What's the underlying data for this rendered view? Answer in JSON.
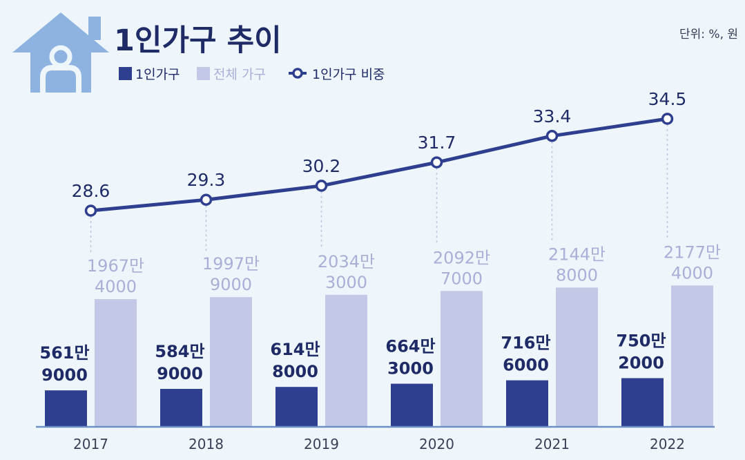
{
  "header": {
    "title": "1인가구 추이",
    "unit": "단위: %, 원"
  },
  "legend": [
    {
      "label": "1인가구",
      "kind": "bar",
      "color": "#2f3f8f"
    },
    {
      "label": "전체 가구",
      "kind": "bar",
      "color": "#c3c8e6"
    },
    {
      "label": "1인가구 비중",
      "kind": "line",
      "color": "#2f3f8f"
    }
  ],
  "colors": {
    "background": "#eef6fc",
    "single_bar": "#2f3f8f",
    "total_bar": "#c3c8e6",
    "total_label": "#a9afd6",
    "line": "#2f3f8f",
    "baseline": "#6e8fc3",
    "icon": "#8fb3e0"
  },
  "icons": [
    "house-person-icon"
  ],
  "chart_data": {
    "type": "bar",
    "categories": [
      "2017",
      "2018",
      "2019",
      "2020",
      "2021",
      "2022"
    ],
    "series": [
      {
        "name": "1인가구",
        "values": [
          5619000,
          5849000,
          6148000,
          6643000,
          7166000,
          7502000
        ],
        "labels": [
          [
            "561만",
            "9000"
          ],
          [
            "584만",
            "9000"
          ],
          [
            "614만",
            "8000"
          ],
          [
            "664만",
            "3000"
          ],
          [
            "716만",
            "6000"
          ],
          [
            "750만",
            "2000"
          ]
        ]
      },
      {
        "name": "전체 가구",
        "values": [
          19674000,
          19979000,
          20343000,
          20927000,
          21448000,
          21774000
        ],
        "labels": [
          [
            "1967만",
            "4000"
          ],
          [
            "1997만",
            "9000"
          ],
          [
            "2034만",
            "3000"
          ],
          [
            "2092만",
            "7000"
          ],
          [
            "2144만",
            "8000"
          ],
          [
            "2177만",
            "4000"
          ]
        ]
      },
      {
        "name": "1인가구 비중",
        "type": "line",
        "values": [
          28.6,
          29.3,
          30.2,
          31.7,
          33.4,
          34.5
        ],
        "labels": [
          "28.6",
          "29.3",
          "30.2",
          "31.7",
          "33.4",
          "34.5"
        ]
      }
    ],
    "title": "1인가구 추이",
    "legend_position": "top-left",
    "grid": false
  }
}
